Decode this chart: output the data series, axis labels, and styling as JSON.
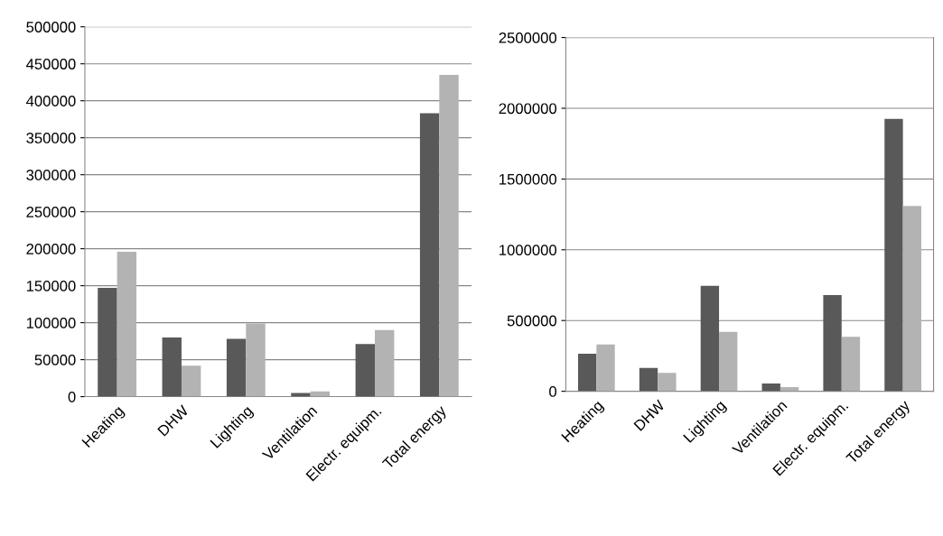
{
  "chart_data": [
    {
      "type": "bar",
      "categories": [
        "Heating",
        "DHW",
        "Lighting",
        "Ventilation",
        "Electr. equipm.",
        "Total energy"
      ],
      "ylim": [
        0,
        500000
      ],
      "yticks": [
        0,
        50000,
        100000,
        150000,
        200000,
        250000,
        300000,
        350000,
        400000,
        450000,
        500000
      ],
      "grid": "y",
      "series": [
        {
          "color": "#595959",
          "values": [
            147000,
            80000,
            78000,
            5000,
            71000,
            383000
          ]
        },
        {
          "color": "#b3b3b3",
          "values": [
            196000,
            42000,
            99000,
            7000,
            90000,
            435000
          ]
        }
      ]
    },
    {
      "type": "bar",
      "categories": [
        "Heating",
        "DHW",
        "Lighting",
        "Ventilation",
        "Electr. equipm.",
        "Total energy"
      ],
      "ylim": [
        0,
        2500000
      ],
      "yticks": [
        0,
        500000,
        1000000,
        1500000,
        2000000,
        2500000
      ],
      "grid": "y",
      "series": [
        {
          "color": "#595959",
          "values": [
            265000,
            165000,
            745000,
            55000,
            680000,
            1925000
          ]
        },
        {
          "color": "#b3b3b3",
          "values": [
            330000,
            130000,
            420000,
            30000,
            385000,
            1310000
          ]
        }
      ]
    }
  ]
}
